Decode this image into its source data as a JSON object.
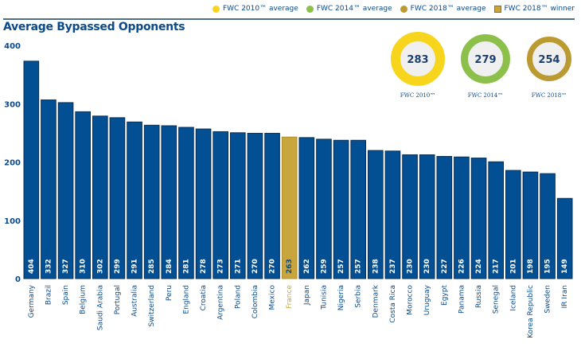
{
  "legend": [
    {
      "label": "FWC 2010™ average",
      "color": "#f7d51d",
      "shape": "circle"
    },
    {
      "label": "FWC 2014™ average",
      "color": "#8cc04b",
      "shape": "circle"
    },
    {
      "label": "FWC 2018™ average",
      "color": "#bc9a32",
      "shape": "circle"
    },
    {
      "label": "FWC 2018™ winner",
      "color": "#c9a63d",
      "shape": "square"
    }
  ],
  "averages": [
    {
      "label": "FWC 2010™",
      "value": "283",
      "color": "#f7d51d"
    },
    {
      "label": "FWC 2014™",
      "value": "279",
      "color": "#8cc04b"
    },
    {
      "label": "FWC 2018™",
      "value": "254",
      "color": "#bc9a32"
    }
  ],
  "colors": {
    "bar": "#034f93",
    "bar_edge": "#0a2f55",
    "winner": "#c9a63d",
    "text": "#0b4a8a"
  },
  "chart_data": {
    "type": "bar",
    "title": "Average Bypassed Opponents",
    "xlabel": "",
    "ylabel": "",
    "ylim": [
      0,
      400
    ],
    "yticks": [
      0,
      100,
      200,
      300,
      400
    ],
    "grid": false,
    "legend_position": "top-right",
    "highlight": "France",
    "categories": [
      "Germany",
      "Brazil",
      "Spain",
      "Belgium",
      "Saudi Arabia",
      "Portugal",
      "Australia",
      "Switzerland",
      "Peru",
      "England",
      "Croatia",
      "Argentina",
      "Poland",
      "Colombia",
      "Mexico",
      "France",
      "Japan",
      "Tunisia",
      "Nigeria",
      "Serbia",
      "Denmark",
      "Costa Rica",
      "Morocco",
      "Uruguay",
      "Egypt",
      "Panama",
      "Russia",
      "Senegal",
      "Iceland",
      "Korea Republic",
      "Sweden",
      "IR Iran"
    ],
    "values": [
      404,
      332,
      327,
      310,
      302,
      299,
      291,
      285,
      284,
      281,
      278,
      273,
      271,
      270,
      270,
      263,
      262,
      259,
      257,
      257,
      238,
      237,
      230,
      230,
      227,
      226,
      224,
      217,
      201,
      198,
      195,
      149
    ]
  }
}
